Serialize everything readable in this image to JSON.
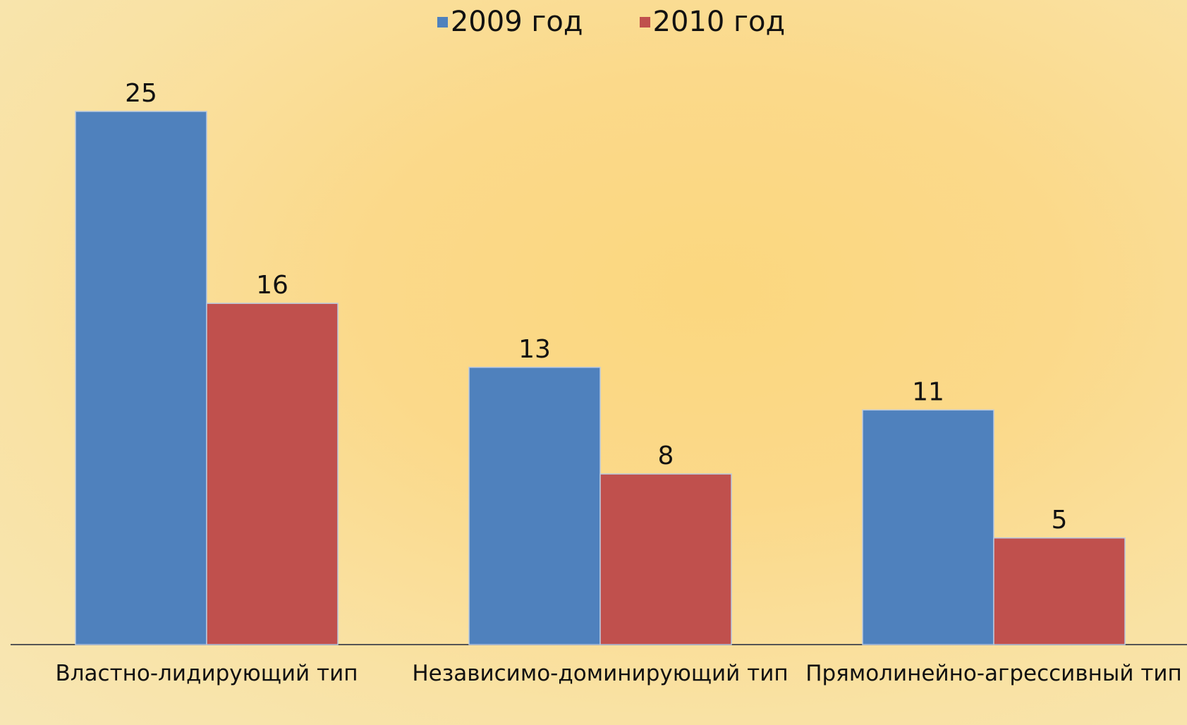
{
  "chart_data": {
    "type": "bar",
    "categories": [
      "Властно-лидирующий тип",
      "Независимо-доминирующий тип",
      "Прямолинейно-агрессивный тип"
    ],
    "series": [
      {
        "name": "2009 год",
        "color": "#4f81bd",
        "values": [
          25,
          13,
          11
        ]
      },
      {
        "name": "2010 год",
        "color": "#c0504d",
        "values": [
          16,
          8,
          5
        ]
      }
    ]
  }
}
